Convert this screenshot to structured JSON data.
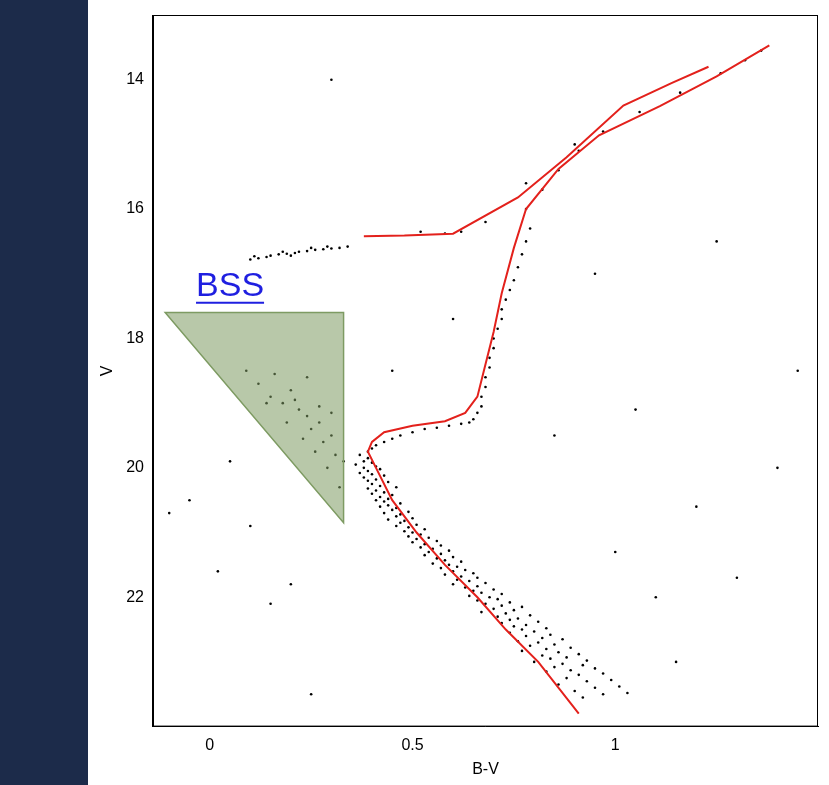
{
  "chart_data": {
    "type": "scatter",
    "x_label": "B-V",
    "y_label": "V",
    "xlim": [
      -0.14,
      1.5
    ],
    "ylim": [
      24,
      13
    ],
    "xticks": [
      0,
      0.5,
      1
    ],
    "yticks": [
      14,
      16,
      18,
      20,
      22
    ],
    "grid": false,
    "series": [
      {
        "type": "scatter",
        "color": "#000000",
        "marker": "circle",
        "x": [
          0.37,
          0.39,
          0.38,
          0.4,
          0.36,
          0.41,
          0.38,
          0.42,
          0.39,
          0.37,
          0.4,
          0.43,
          0.38,
          0.41,
          0.39,
          0.44,
          0.4,
          0.42,
          0.46,
          0.39,
          0.41,
          0.43,
          0.4,
          0.45,
          0.42,
          0.44,
          0.41,
          0.43,
          0.47,
          0.44,
          0.42,
          0.46,
          0.45,
          0.49,
          0.43,
          0.47,
          0.46,
          0.5,
          0.44,
          0.48,
          0.47,
          0.51,
          0.46,
          0.49,
          0.53,
          0.48,
          0.5,
          0.52,
          0.49,
          0.54,
          0.51,
          0.56,
          0.5,
          0.53,
          0.57,
          0.52,
          0.55,
          0.59,
          0.54,
          0.57,
          0.53,
          0.6,
          0.56,
          0.58,
          0.62,
          0.55,
          0.59,
          0.61,
          0.57,
          0.63,
          0.6,
          0.65,
          0.58,
          0.62,
          0.66,
          0.61,
          0.64,
          0.68,
          0.6,
          0.66,
          0.63,
          0.7,
          0.65,
          0.67,
          0.72,
          0.64,
          0.69,
          0.71,
          0.66,
          0.74,
          0.68,
          0.72,
          0.77,
          0.7,
          0.75,
          0.67,
          0.73,
          0.79,
          0.71,
          0.76,
          0.74,
          0.81,
          0.72,
          0.78,
          0.75,
          0.83,
          0.77,
          0.8,
          0.74,
          0.84,
          0.78,
          0.82,
          0.87,
          0.76,
          0.81,
          0.85,
          0.79,
          0.89,
          0.83,
          0.77,
          0.86,
          0.91,
          0.82,
          0.88,
          0.84,
          0.93,
          0.8,
          0.87,
          0.92,
          0.85,
          0.95,
          0.89,
          0.83,
          0.97,
          0.91,
          0.88,
          0.99,
          0.93,
          0.86,
          1.01,
          0.95,
          0.9,
          1.03,
          0.97,
          0.92
        ],
        "values": [
          19.8,
          19.85,
          19.9,
          19.92,
          19.95,
          19.98,
          20.0,
          20.02,
          20.05,
          20.08,
          20.1,
          20.12,
          20.15,
          20.18,
          20.2,
          20.22,
          20.25,
          20.28,
          20.3,
          20.32,
          20.35,
          20.38,
          20.4,
          20.42,
          20.45,
          20.48,
          20.5,
          20.52,
          20.55,
          20.58,
          20.6,
          20.62,
          20.65,
          20.68,
          20.7,
          20.72,
          20.75,
          20.78,
          20.8,
          20.82,
          20.85,
          20.88,
          20.9,
          20.92,
          20.95,
          20.98,
          21.0,
          21.03,
          21.06,
          21.08,
          21.1,
          21.13,
          21.15,
          21.18,
          21.2,
          21.23,
          21.25,
          21.28,
          21.3,
          21.33,
          21.35,
          21.38,
          21.4,
          21.43,
          21.45,
          21.48,
          21.5,
          21.53,
          21.55,
          21.58,
          21.6,
          21.63,
          21.65,
          21.68,
          21.7,
          21.73,
          21.75,
          21.78,
          21.8,
          21.83,
          21.85,
          21.88,
          21.9,
          21.93,
          21.95,
          21.98,
          22.0,
          22.03,
          22.05,
          22.08,
          22.1,
          22.13,
          22.15,
          22.18,
          22.2,
          22.23,
          22.25,
          22.28,
          22.3,
          22.33,
          22.35,
          22.38,
          22.4,
          22.43,
          22.45,
          22.48,
          22.5,
          22.53,
          22.55,
          22.58,
          22.6,
          22.63,
          22.65,
          22.68,
          22.7,
          22.73,
          22.75,
          22.78,
          22.8,
          22.83,
          22.85,
          22.88,
          22.9,
          22.93,
          22.95,
          22.98,
          23.0,
          23.03,
          23.05,
          23.08,
          23.1,
          23.13,
          23.15,
          23.18,
          23.2,
          23.25,
          23.28,
          23.3,
          23.35,
          23.38,
          23.4,
          23.45,
          23.48,
          23.5,
          23.55
        ]
      },
      {
        "type": "scatter",
        "color": "#000000",
        "marker": "circle",
        "x": [
          0.39,
          0.4,
          0.41,
          0.43,
          0.45,
          0.47,
          0.5,
          0.53,
          0.56,
          0.59,
          0.62,
          0.64,
          0.65,
          0.66,
          0.67,
          0.67,
          0.68,
          0.68,
          0.69,
          0.69,
          0.7,
          0.7,
          0.71,
          0.72,
          0.72,
          0.73,
          0.74,
          0.75,
          0.76,
          0.77,
          0.78,
          0.79,
          0.78,
          0.82,
          0.86,
          0.91,
          0.97,
          1.06,
          1.16,
          1.26,
          1.32,
          1.36,
          0.62,
          0.68,
          0.78,
          0.9
        ],
        "values": [
          19.75,
          19.7,
          19.65,
          19.6,
          19.55,
          19.5,
          19.45,
          19.4,
          19.38,
          19.35,
          19.32,
          19.3,
          19.25,
          19.15,
          19.05,
          18.9,
          18.75,
          18.6,
          18.45,
          18.3,
          18.15,
          18.0,
          17.85,
          17.7,
          17.55,
          17.4,
          17.25,
          17.1,
          16.9,
          16.7,
          16.5,
          16.3,
          16.0,
          15.7,
          15.4,
          15.1,
          14.8,
          14.5,
          14.2,
          13.9,
          13.7,
          13.55,
          16.35,
          16.2,
          15.6,
          15.0
        ]
      },
      {
        "type": "scatter",
        "color": "#000000",
        "marker": "circle",
        "x": [
          0.1,
          0.12,
          0.14,
          0.15,
          0.17,
          0.19,
          0.21,
          0.22,
          0.24,
          0.26,
          0.28,
          0.3,
          0.32,
          0.34,
          0.11,
          0.18,
          0.25,
          0.2,
          0.29,
          0.52,
          0.58
        ],
        "values": [
          16.78,
          16.76,
          16.74,
          16.72,
          16.7,
          16.69,
          16.68,
          16.66,
          16.65,
          16.63,
          16.62,
          16.61,
          16.6,
          16.58,
          16.73,
          16.66,
          16.6,
          16.72,
          16.58,
          16.35,
          16.38
        ]
      },
      {
        "type": "scatter",
        "color": "#000000",
        "marker": "circle",
        "x": [
          0.09,
          0.12,
          0.15,
          0.18,
          0.2,
          0.22,
          0.24,
          0.25,
          0.27,
          0.28,
          0.3,
          0.31,
          0.16,
          0.19,
          0.23,
          0.26,
          0.29,
          0.32,
          0.21,
          0.27,
          0.14,
          0.3,
          0.33,
          0.24
        ],
        "values": [
          18.5,
          18.7,
          18.9,
          19.0,
          18.8,
          19.1,
          19.2,
          19.4,
          19.3,
          19.6,
          19.5,
          19.8,
          18.55,
          19.3,
          19.55,
          19.75,
          20.0,
          20.3,
          18.95,
          19.05,
          19.0,
          19.15,
          19.9,
          18.6
        ]
      },
      {
        "type": "scatter",
        "color": "#000000",
        "marker": "circle",
        "x": [
          -0.05,
          0.02,
          0.15,
          0.05,
          -0.1,
          1.0,
          1.1,
          1.2,
          1.3,
          1.05,
          0.95,
          1.4,
          0.1,
          0.25,
          0.6,
          0.45,
          1.45,
          0.3,
          1.25,
          0.85,
          1.15,
          0.2
        ],
        "values": [
          20.5,
          21.6,
          22.1,
          19.9,
          20.7,
          21.3,
          22.0,
          20.6,
          21.7,
          19.1,
          17.0,
          20.0,
          20.9,
          23.5,
          17.7,
          18.5,
          18.5,
          14.0,
          16.5,
          19.5,
          23.0,
          21.8
        ]
      },
      {
        "type": "line",
        "color": "#e3211c",
        "line_style": "solid",
        "x": [
          0.91,
          0.81,
          0.73,
          0.66,
          0.58,
          0.51,
          0.45,
          0.41,
          0.39,
          0.4,
          0.43,
          0.5,
          0.58,
          0.63,
          0.66,
          0.68,
          0.7,
          0.72,
          0.75,
          0.78,
          0.86,
          0.96,
          1.11,
          1.25,
          1.38
        ],
        "values": [
          23.8,
          23.0,
          22.5,
          22.0,
          21.5,
          21.0,
          20.5,
          20.0,
          19.75,
          19.6,
          19.45,
          19.35,
          19.28,
          19.15,
          18.9,
          18.4,
          17.9,
          17.3,
          16.6,
          16.0,
          15.38,
          14.86,
          14.41,
          13.95,
          13.47
        ]
      },
      {
        "type": "line",
        "color": "#e3211c",
        "line_style": "solid",
        "x": [
          0.38,
          0.48,
          0.6,
          0.76,
          0.88,
          1.02,
          1.14,
          1.23
        ],
        "values": [
          16.42,
          16.41,
          16.38,
          15.82,
          15.2,
          14.4,
          14.05,
          13.8
        ]
      }
    ],
    "regions": [
      {
        "x": [
          -0.11,
          0.33,
          0.33
        ],
        "values": [
          17.6,
          17.6,
          20.85
        ],
        "color": "#7e9b63"
      }
    ],
    "annotations": [
      {
        "text": "BSS",
        "x": 0.05,
        "y": 17.2,
        "color": "#1f1fe0"
      }
    ]
  }
}
